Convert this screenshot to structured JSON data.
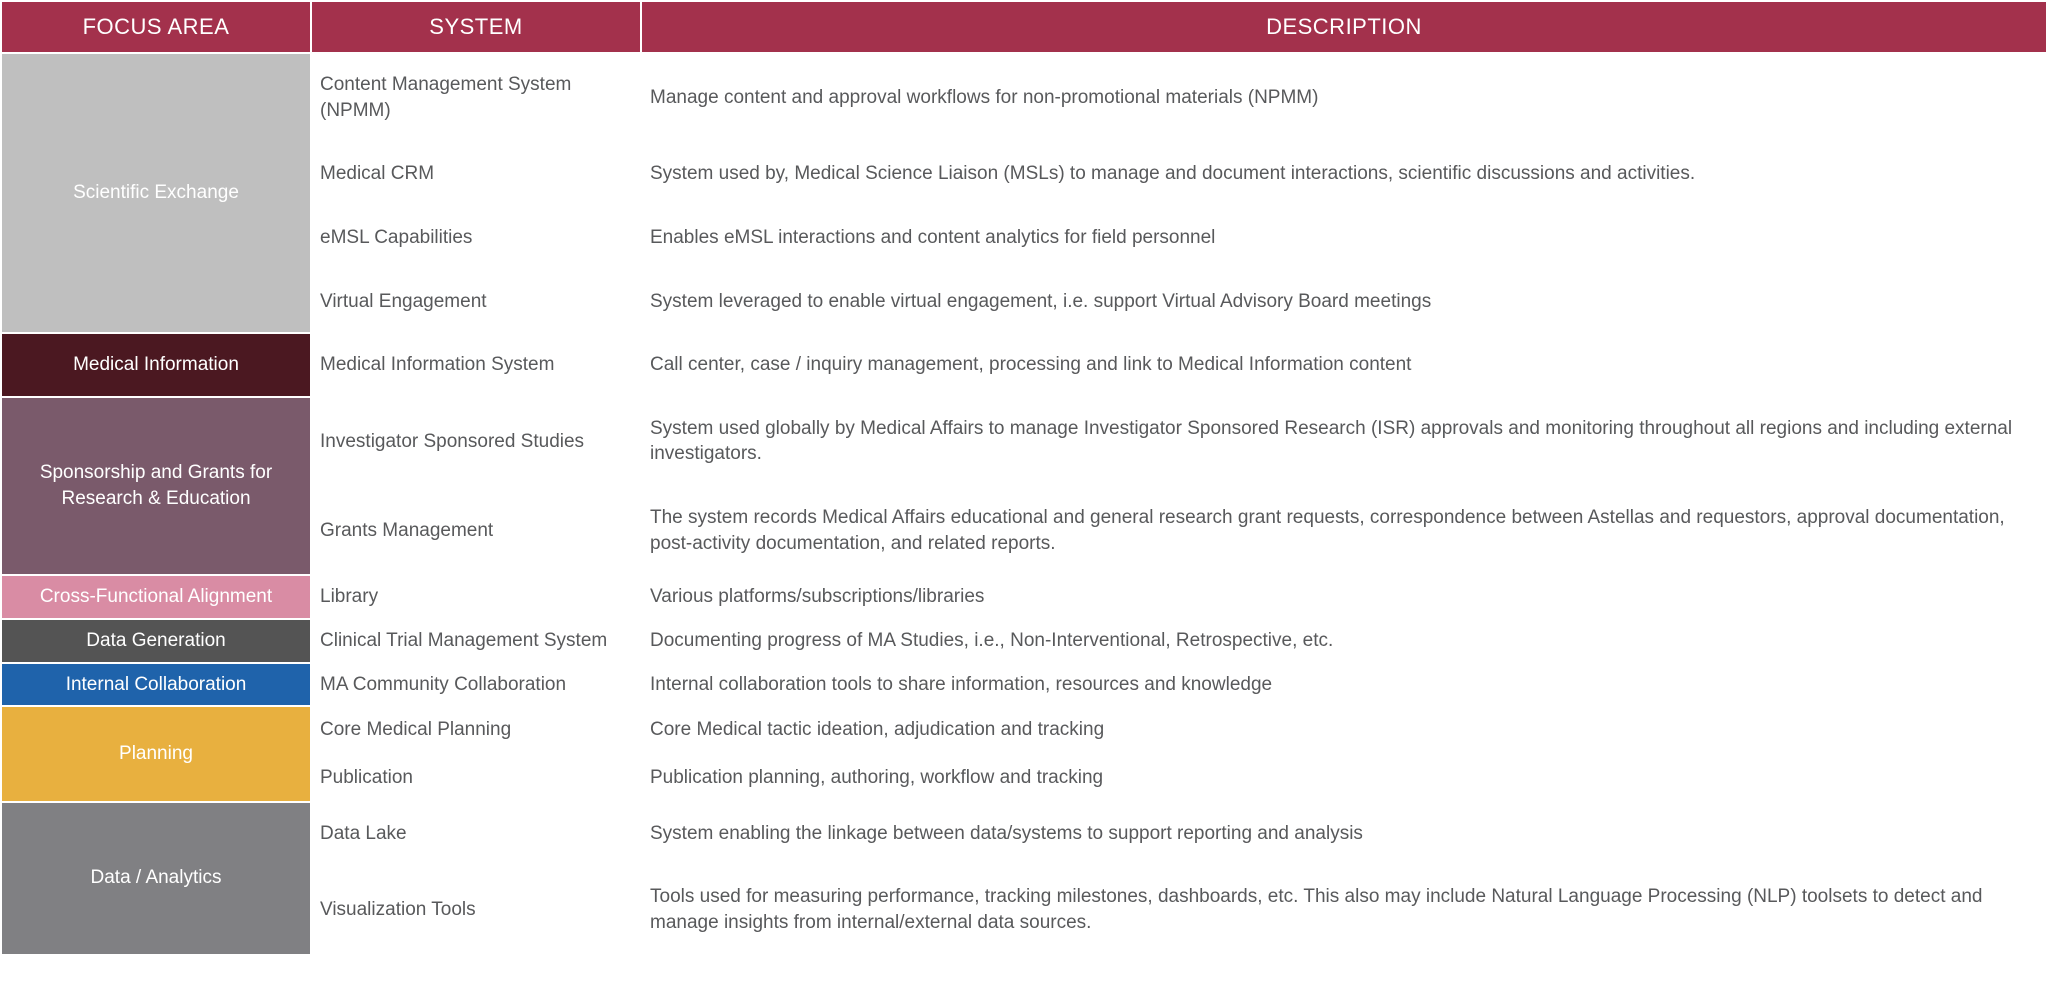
{
  "columns": [
    "FOCUS AREA",
    "SYSTEM",
    "DESCRIPTION"
  ],
  "header_bg": "#a3314c",
  "groups": [
    {
      "label": "Scientific Exchange",
      "bg": "#bfbfbf",
      "rows": [
        {
          "system": "Content Management System (NPMM)",
          "desc": "Manage content and approval workflows for non-promotional materials (NPMM)"
        },
        {
          "system": "Medical CRM",
          "desc": "System used by, Medical Science Liaison (MSLs) to manage and document interactions, scientific discussions and activities."
        },
        {
          "system": "eMSL Capabilities",
          "desc": "Enables eMSL interactions and content analytics for field personnel"
        },
        {
          "system": "Virtual Engagement",
          "desc": "System leveraged to enable virtual engagement, i.e.  support Virtual Advisory Board meetings"
        }
      ]
    },
    {
      "label": "Medical Information",
      "bg": "#4b1821",
      "rows": [
        {
          "system": "Medical Information System",
          "desc": "Call center, case / inquiry management, processing and link to Medical Information content"
        }
      ]
    },
    {
      "label": "Sponsorship and Grants for Research & Education",
      "bg": "#7a5a6b",
      "rows": [
        {
          "system": "Investigator Sponsored Studies",
          "desc": "System used globally by Medical Affairs to manage Investigator Sponsored Research (ISR) approvals and monitoring throughout all regions and including external investigators."
        },
        {
          "system": "Grants Management",
          "desc": "The system records Medical Affairs educational and general research grant requests, correspondence between Astellas and requestors, approval documentation, post-activity documentation, and related reports."
        }
      ]
    },
    {
      "label": "Cross-Functional Alignment",
      "bg": "#d98ca4",
      "compact": true,
      "rows": [
        {
          "system": "Library",
          "desc": "Various platforms/subscriptions/libraries"
        }
      ]
    },
    {
      "label": "Data Generation",
      "bg": "#545454",
      "compact": true,
      "rows": [
        {
          "system": "Clinical Trial Management System",
          "desc": "Documenting progress of MA Studies, i.e., Non-Interventional, Retrospective, etc."
        }
      ]
    },
    {
      "label": "Internal Collaboration",
      "bg": "#1f63ab",
      "compact": true,
      "rows": [
        {
          "system": "MA Community Collaboration",
          "desc": "Internal collaboration tools to share information, resources and knowledge"
        }
      ]
    },
    {
      "label": "Planning",
      "bg": "#e8b03f",
      "compact2": true,
      "rows": [
        {
          "system": "Core Medical Planning",
          "desc": "Core Medical tactic ideation, adjudication and tracking"
        },
        {
          "system": "Publication",
          "desc": "Publication planning, authoring, workflow and tracking"
        }
      ]
    },
    {
      "label": "Data / Analytics",
      "bg": "#808083",
      "rows": [
        {
          "system": "Data Lake",
          "desc": "System enabling the linkage between data/systems to support reporting and analysis"
        },
        {
          "system": "Visualization Tools",
          "desc": "Tools used for measuring performance, tracking milestones, dashboards, etc.    This also may include Natural Language Processing (NLP) toolsets to detect and manage insights from internal/external data sources."
        }
      ]
    }
  ]
}
